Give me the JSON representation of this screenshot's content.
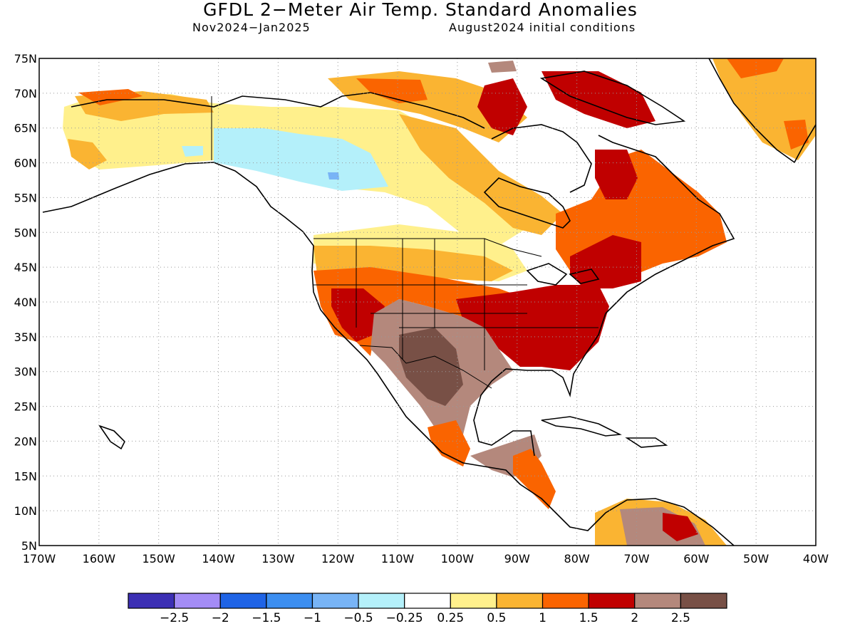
{
  "title": "GFDL 2−Meter Air Temp. Standard Anomalies",
  "period": "Nov2024−Jan2025",
  "init": "August2024 initial conditions",
  "map": {
    "lon_range": [
      -170,
      -40
    ],
    "lat_range": [
      5,
      75
    ],
    "lon_ticks": [
      "170W",
      "160W",
      "150W",
      "140W",
      "130W",
      "120W",
      "110W",
      "100W",
      "90W",
      "80W",
      "70W",
      "60W",
      "50W",
      "40W"
    ],
    "lat_ticks": [
      "75N",
      "70N",
      "65N",
      "60N",
      "55N",
      "50N",
      "45N",
      "40N",
      "35N",
      "30N",
      "25N",
      "20N",
      "15N",
      "10N",
      "5N"
    ],
    "grid": "dotted"
  },
  "legend": {
    "colors": [
      "#3c2fb4",
      "#a48cf6",
      "#1f64e6",
      "#3c8ef0",
      "#78b4f6",
      "#b4f0fa",
      "#ffffff",
      "#fff08c",
      "#fab432",
      "#fa6400",
      "#c00000",
      "#b4887c",
      "#785046"
    ],
    "labels": [
      "−2.5",
      "−2",
      "−1.5",
      "−1",
      "−0.5",
      "−0.25",
      "0.25",
      "0.5",
      "1",
      "1.5",
      "2",
      "2.5"
    ]
  }
}
